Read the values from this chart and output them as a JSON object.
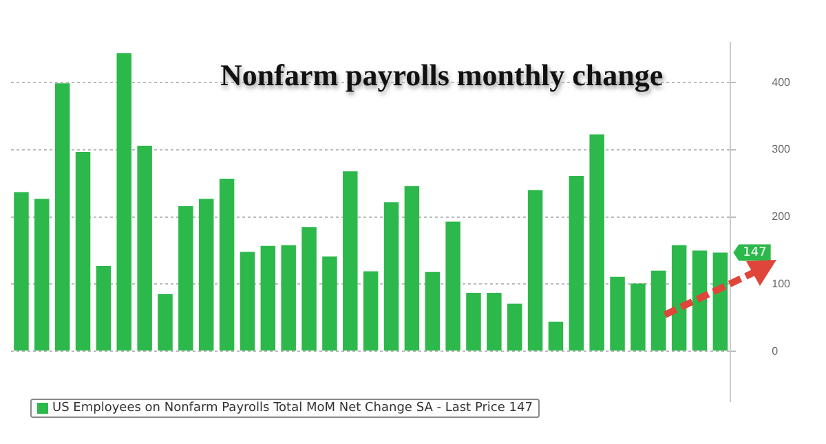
{
  "chart_data": {
    "type": "bar",
    "title": "Nonfarm payrolls monthly change",
    "categories": [
      null,
      null,
      null,
      null,
      null,
      null,
      null,
      null,
      null,
      null,
      null,
      null,
      null,
      null,
      null,
      null,
      null,
      null,
      null,
      null,
      null,
      null,
      null,
      null,
      null,
      null,
      null,
      null,
      null,
      null,
      null,
      null,
      null,
      null,
      null
    ],
    "series": [
      {
        "name": "US Employees on Nonfarm Payrolls Total MoM Net Change SA - Last Price 147",
        "color": "#2db84b",
        "values": [
          237,
          227,
          399,
          297,
          127,
          444,
          306,
          85,
          216,
          227,
          257,
          148,
          157,
          158,
          185,
          141,
          268,
          119,
          222,
          246,
          118,
          193,
          87,
          87,
          71,
          240,
          44,
          261,
          323,
          111,
          101,
          120,
          158,
          150,
          147
        ]
      }
    ],
    "ylim": [
      -75,
      460
    ],
    "yticks": [
      0,
      100,
      200,
      300,
      400
    ],
    "grid": "y",
    "legend": "bottom left",
    "annotations": [
      "147"
    ]
  }
}
